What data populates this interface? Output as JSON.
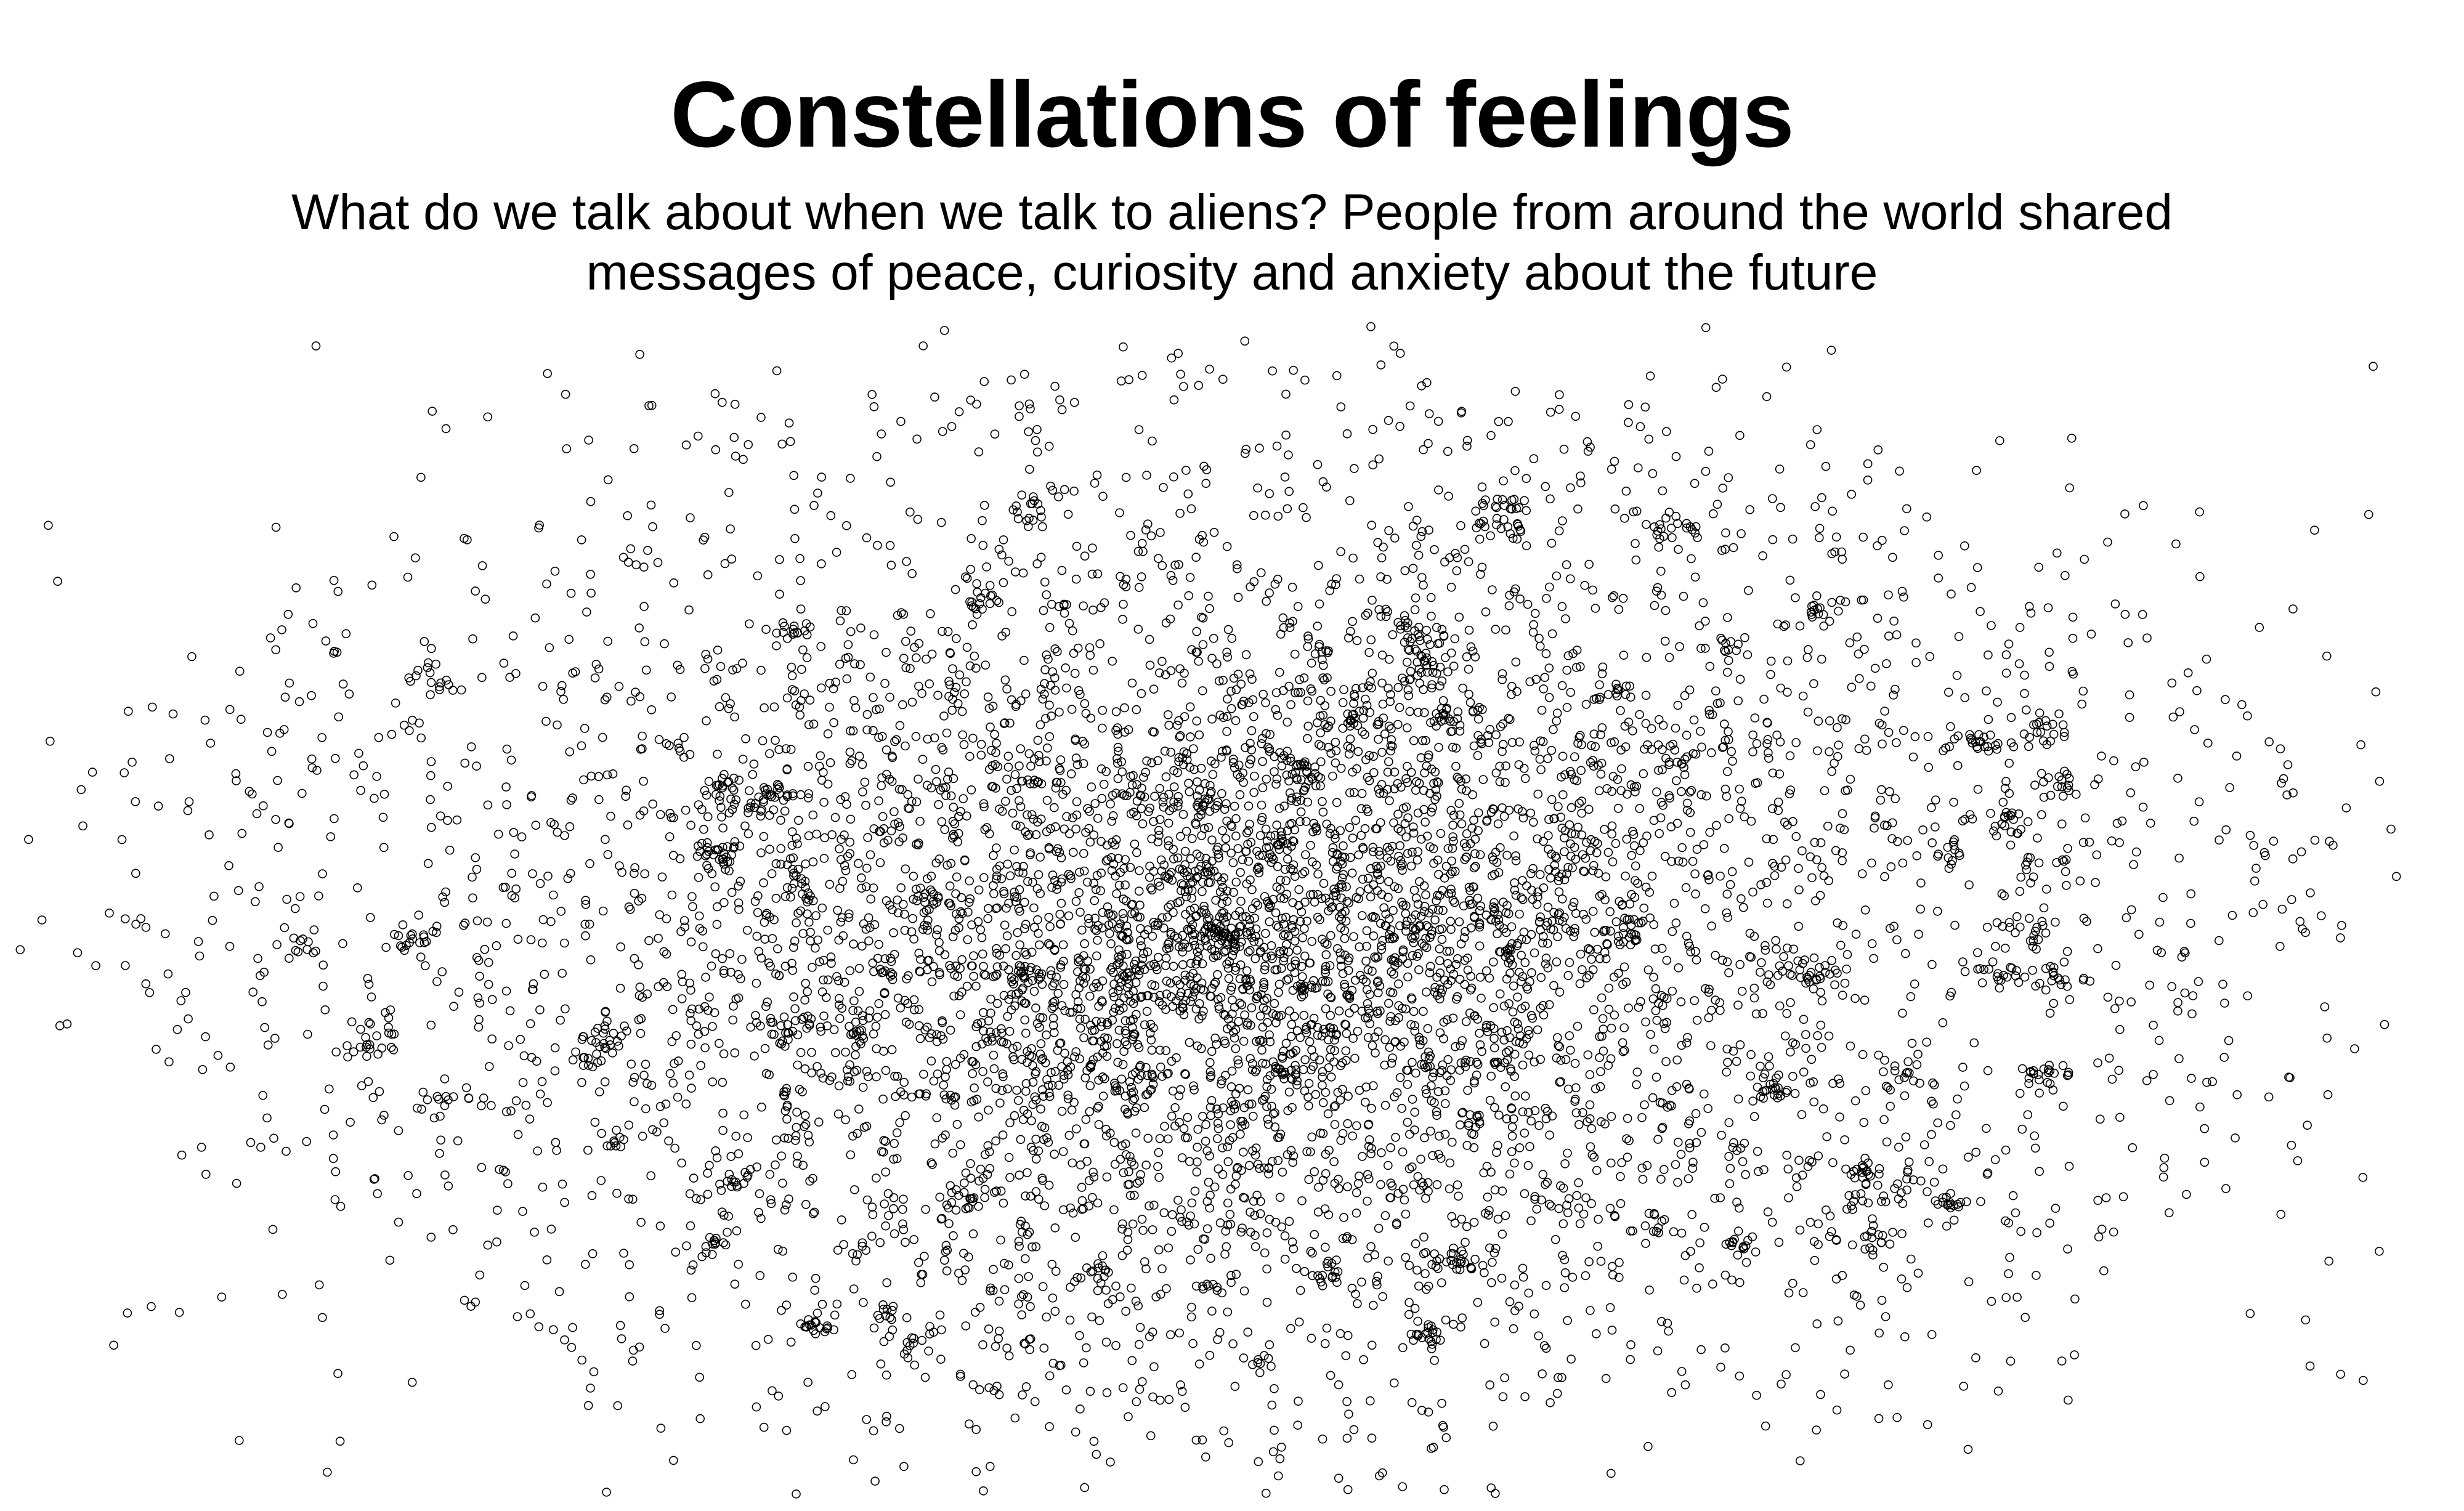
{
  "chart_data": {
    "type": "scatter",
    "title": "Constellations of feelings",
    "subtitle": "What do we talk about when we talk to aliens? People from around the world shared messages of peace, curiosity and anxiety about the future",
    "xlabel": "",
    "ylabel": "",
    "grid": false,
    "axes_visible": false,
    "legend": "none",
    "marker": "hollow-circle",
    "marker_color": "#000000",
    "notes_visible_data": "Several thousand unlabeled points forming a dense elliptical cloud, densest near the center with many small clusters"
  },
  "colors": {
    "background": "#ffffff",
    "text": "#000000",
    "marker_stroke": "#000000"
  }
}
